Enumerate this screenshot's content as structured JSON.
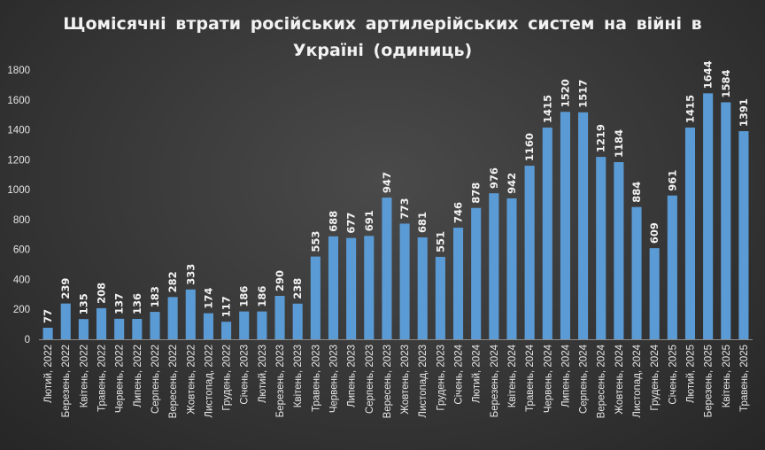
{
  "chart_data": {
    "type": "bar",
    "title_lines": [
      "Щомісячні  втрати  російських  артилерійських  систем  на  війні  в",
      "Україні  (одиниць)"
    ],
    "xlabel": "",
    "ylabel": "",
    "ylim": [
      0,
      1800
    ],
    "yticks": [
      0,
      200,
      400,
      600,
      800,
      1000,
      1200,
      1400,
      1600,
      1800
    ],
    "yticks_text": [
      "0",
      "200",
      "400",
      "600",
      "800",
      "1000",
      "1200",
      "1400",
      "1600",
      "1800"
    ],
    "grid": false,
    "legend": "none",
    "bar_color": "#5b9bd5",
    "categories": [
      "Лютий, 2022",
      "Березень, 2022",
      "Квітень, 2022",
      "Травень, 2022",
      "Червень, 2022",
      "Липень, 2022",
      "Серпень, 2022",
      "Вересень, 2022",
      "Жовтень, 2022",
      "Листопад, 2022",
      "Грудень, 2022",
      "Січень, 2023",
      "Лютий, 2023",
      "Березень, 2023",
      "Квітень, 2023",
      "Травень, 2023",
      "Червень, 2023",
      "Липень, 2023",
      "Серпень, 2023",
      "Вересень, 2023",
      "Жовтень, 2023",
      "Листопад, 2023",
      "Грудень, 2023",
      "Січень, 2024",
      "Лютий, 2024",
      "Березень, 2024",
      "Квітень, 2024",
      "Травень, 2024",
      "Червень, 2024",
      "Липень, 2024",
      "Серпень, 2024",
      "Вересень, 2024",
      "Жовтень, 2024",
      "Листопад, 2024",
      "Грудень, 2024",
      "Січень, 2025",
      "Лютий, 2025",
      "Березень, 2025",
      "Квітень, 2025",
      "Травень, 2025"
    ],
    "values": [
      77,
      239,
      135,
      208,
      137,
      136,
      183,
      282,
      333,
      174,
      117,
      186,
      186,
      290,
      238,
      553,
      688,
      677,
      691,
      947,
      773,
      681,
      551,
      746,
      878,
      976,
      942,
      1160,
      1415,
      1520,
      1517,
      1219,
      1184,
      884,
      609,
      961,
      1415,
      1644,
      1584,
      1391
    ],
    "value_labels": [
      "77",
      "239",
      "135",
      "208",
      "137",
      "136",
      "183",
      "282",
      "333",
      "174",
      "117",
      "186",
      "186",
      "290",
      "238",
      "553",
      "688",
      "677",
      "691",
      "947",
      "773",
      "681",
      "551",
      "746",
      "878",
      "976",
      "942",
      "1160",
      "1415",
      "1520",
      "1517",
      "1219",
      "1184",
      "884",
      "609",
      "961",
      "1415",
      "1644",
      "1584",
      "1391"
    ]
  }
}
